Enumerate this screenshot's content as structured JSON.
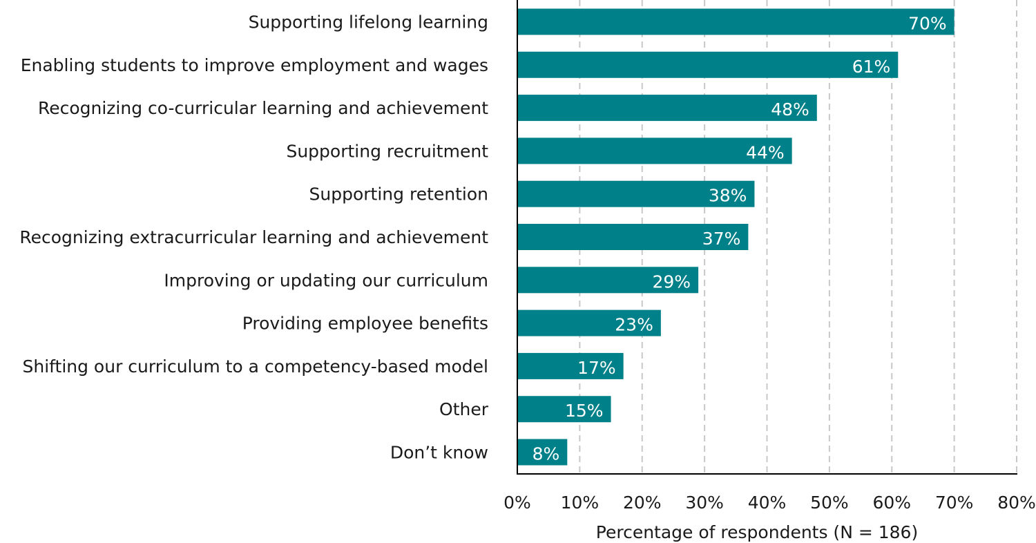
{
  "chart_data": {
    "type": "bar",
    "orientation": "horizontal",
    "categories": [
      "Supporting lifelong learning",
      "Enabling students to improve employment and wages",
      "Recognizing co-curricular learning and achievement",
      "Supporting recruitment",
      "Supporting retention",
      "Recognizing extracurricular learning and achievement",
      "Improving or updating our curriculum",
      "Providing employee benefits",
      "Shifting our curriculum to a competency-based model",
      "Other",
      "Don’t know"
    ],
    "values": [
      70,
      61,
      48,
      44,
      38,
      37,
      29,
      23,
      17,
      15,
      8
    ],
    "value_labels": [
      "70%",
      "61%",
      "48%",
      "44%",
      "38%",
      "37%",
      "29%",
      "23%",
      "17%",
      "15%",
      "8%"
    ],
    "xlabel": "Percentage of respondents (N = 186)",
    "xlim": [
      0,
      80
    ],
    "xticks": [
      0,
      10,
      20,
      30,
      40,
      50,
      60,
      70,
      80
    ],
    "xtick_labels": [
      "0%",
      "10%",
      "20%",
      "30%",
      "40%",
      "50%",
      "60%",
      "70%",
      "80%"
    ],
    "grid": "vertical dashed",
    "legend": "none",
    "bar_color": "#00818a"
  }
}
